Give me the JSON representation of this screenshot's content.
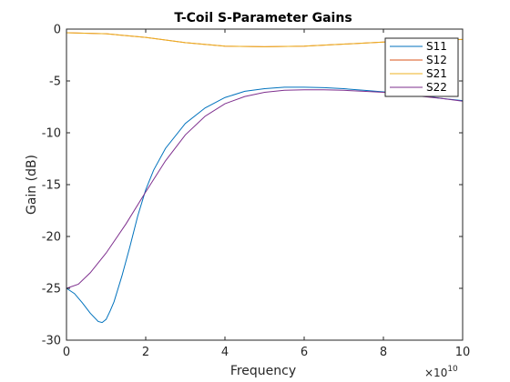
{
  "chart_data": {
    "type": "line",
    "title": "T-Coil S-Parameter Gains",
    "xlabel": "Frequency",
    "ylabel": "Gain (dB)",
    "x_exponent_base": "×10",
    "x_exponent_power": "10",
    "xlim": [
      0,
      10
    ],
    "ylim": [
      -30,
      0
    ],
    "xticks": [
      0,
      2,
      4,
      6,
      8,
      10
    ],
    "yticks": [
      0,
      -5,
      -10,
      -15,
      -20,
      -25,
      -30
    ],
    "grid": false,
    "legend_position": "top-right",
    "series": [
      {
        "name": "S11",
        "color": "#0072BD",
        "points": [
          [
            0,
            -25.0
          ],
          [
            0.2,
            -25.5
          ],
          [
            0.4,
            -26.4
          ],
          [
            0.6,
            -27.4
          ],
          [
            0.8,
            -28.2
          ],
          [
            0.9,
            -28.3
          ],
          [
            1.0,
            -28.0
          ],
          [
            1.1,
            -27.2
          ],
          [
            1.2,
            -26.3
          ],
          [
            1.4,
            -23.8
          ],
          [
            1.6,
            -21.0
          ],
          [
            1.8,
            -18.0
          ],
          [
            2.0,
            -15.5
          ],
          [
            2.2,
            -13.6
          ],
          [
            2.5,
            -11.5
          ],
          [
            3.0,
            -9.1
          ],
          [
            3.5,
            -7.6
          ],
          [
            4.0,
            -6.6
          ],
          [
            4.5,
            -6.0
          ],
          [
            5.0,
            -5.75
          ],
          [
            5.5,
            -5.6
          ],
          [
            6.0,
            -5.6
          ],
          [
            6.5,
            -5.65
          ],
          [
            7.0,
            -5.75
          ],
          [
            7.5,
            -5.9
          ],
          [
            8.0,
            -6.05
          ],
          [
            8.5,
            -6.25
          ],
          [
            9.0,
            -6.45
          ],
          [
            9.5,
            -6.7
          ],
          [
            10.0,
            -6.9
          ]
        ]
      },
      {
        "name": "S12",
        "color": "#D95319",
        "points": [
          [
            0,
            -0.35
          ],
          [
            1.0,
            -0.45
          ],
          [
            2.0,
            -0.8
          ],
          [
            3.0,
            -1.3
          ],
          [
            4.0,
            -1.65
          ],
          [
            5.0,
            -1.7
          ],
          [
            6.0,
            -1.65
          ],
          [
            7.0,
            -1.45
          ],
          [
            8.0,
            -1.25
          ],
          [
            9.0,
            -1.1
          ],
          [
            10.0,
            -1.0
          ]
        ]
      },
      {
        "name": "S21",
        "color": "#EDB120",
        "points": [
          [
            0,
            -0.35
          ],
          [
            1.0,
            -0.45
          ],
          [
            2.0,
            -0.8
          ],
          [
            3.0,
            -1.3
          ],
          [
            4.0,
            -1.65
          ],
          [
            5.0,
            -1.7
          ],
          [
            6.0,
            -1.65
          ],
          [
            7.0,
            -1.45
          ],
          [
            8.0,
            -1.25
          ],
          [
            9.0,
            -1.1
          ],
          [
            10.0,
            -1.0
          ]
        ]
      },
      {
        "name": "S22",
        "color": "#7E2F8E",
        "points": [
          [
            0,
            -25.0
          ],
          [
            0.3,
            -24.6
          ],
          [
            0.6,
            -23.5
          ],
          [
            1.0,
            -21.6
          ],
          [
            1.5,
            -18.8
          ],
          [
            2.0,
            -15.7
          ],
          [
            2.5,
            -12.7
          ],
          [
            3.0,
            -10.2
          ],
          [
            3.5,
            -8.4
          ],
          [
            4.0,
            -7.2
          ],
          [
            4.5,
            -6.5
          ],
          [
            5.0,
            -6.1
          ],
          [
            5.5,
            -5.9
          ],
          [
            6.0,
            -5.85
          ],
          [
            6.5,
            -5.85
          ],
          [
            7.0,
            -5.9
          ],
          [
            7.5,
            -6.0
          ],
          [
            8.0,
            -6.1
          ],
          [
            8.5,
            -6.3
          ],
          [
            9.0,
            -6.5
          ],
          [
            9.5,
            -6.7
          ],
          [
            10.0,
            -6.95
          ]
        ]
      }
    ]
  }
}
